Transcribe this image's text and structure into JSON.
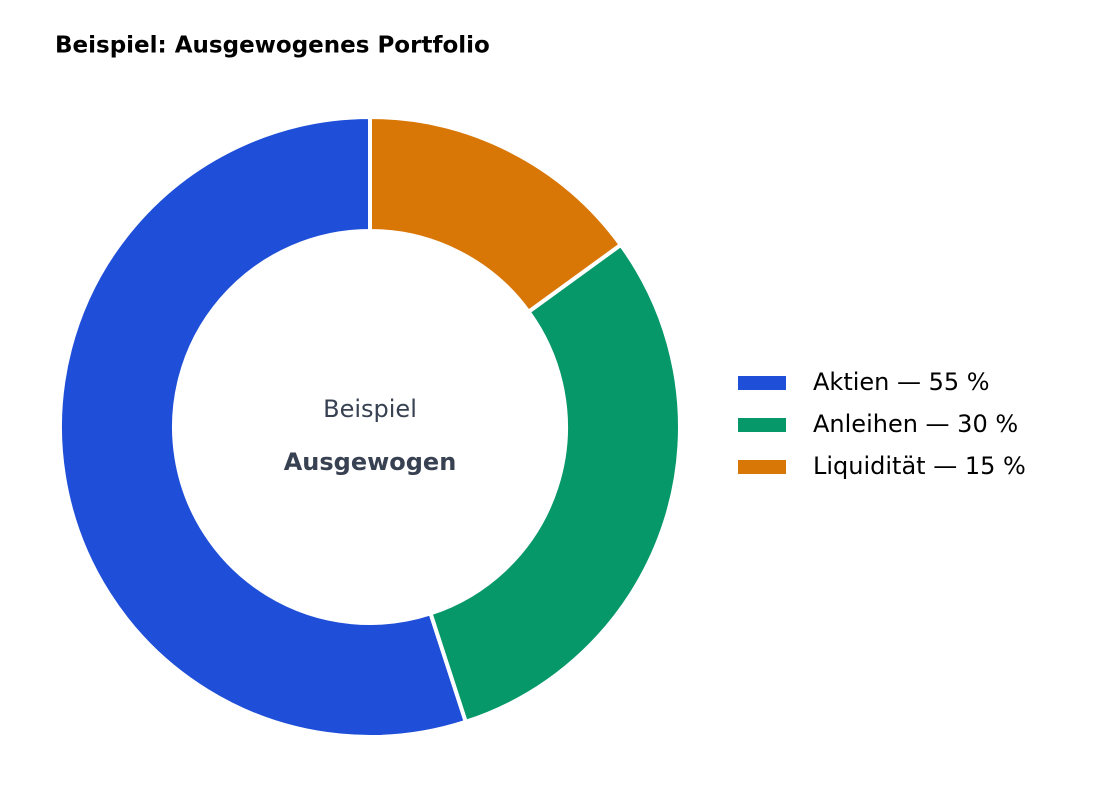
{
  "chart_data": {
    "type": "donut",
    "title": "Beispiel: Ausgewogenes Portfolio",
    "center_label": "Beispiel",
    "center_sublabel": "Ausgewogen",
    "categories": [
      "Aktien — 55 %",
      "Anleihen — 30 %",
      "Liquidität — 15 %"
    ],
    "values": [
      55,
      30,
      15
    ],
    "colors": [
      "#1f4fd8",
      "#069869",
      "#d97706"
    ],
    "legend": "right"
  }
}
